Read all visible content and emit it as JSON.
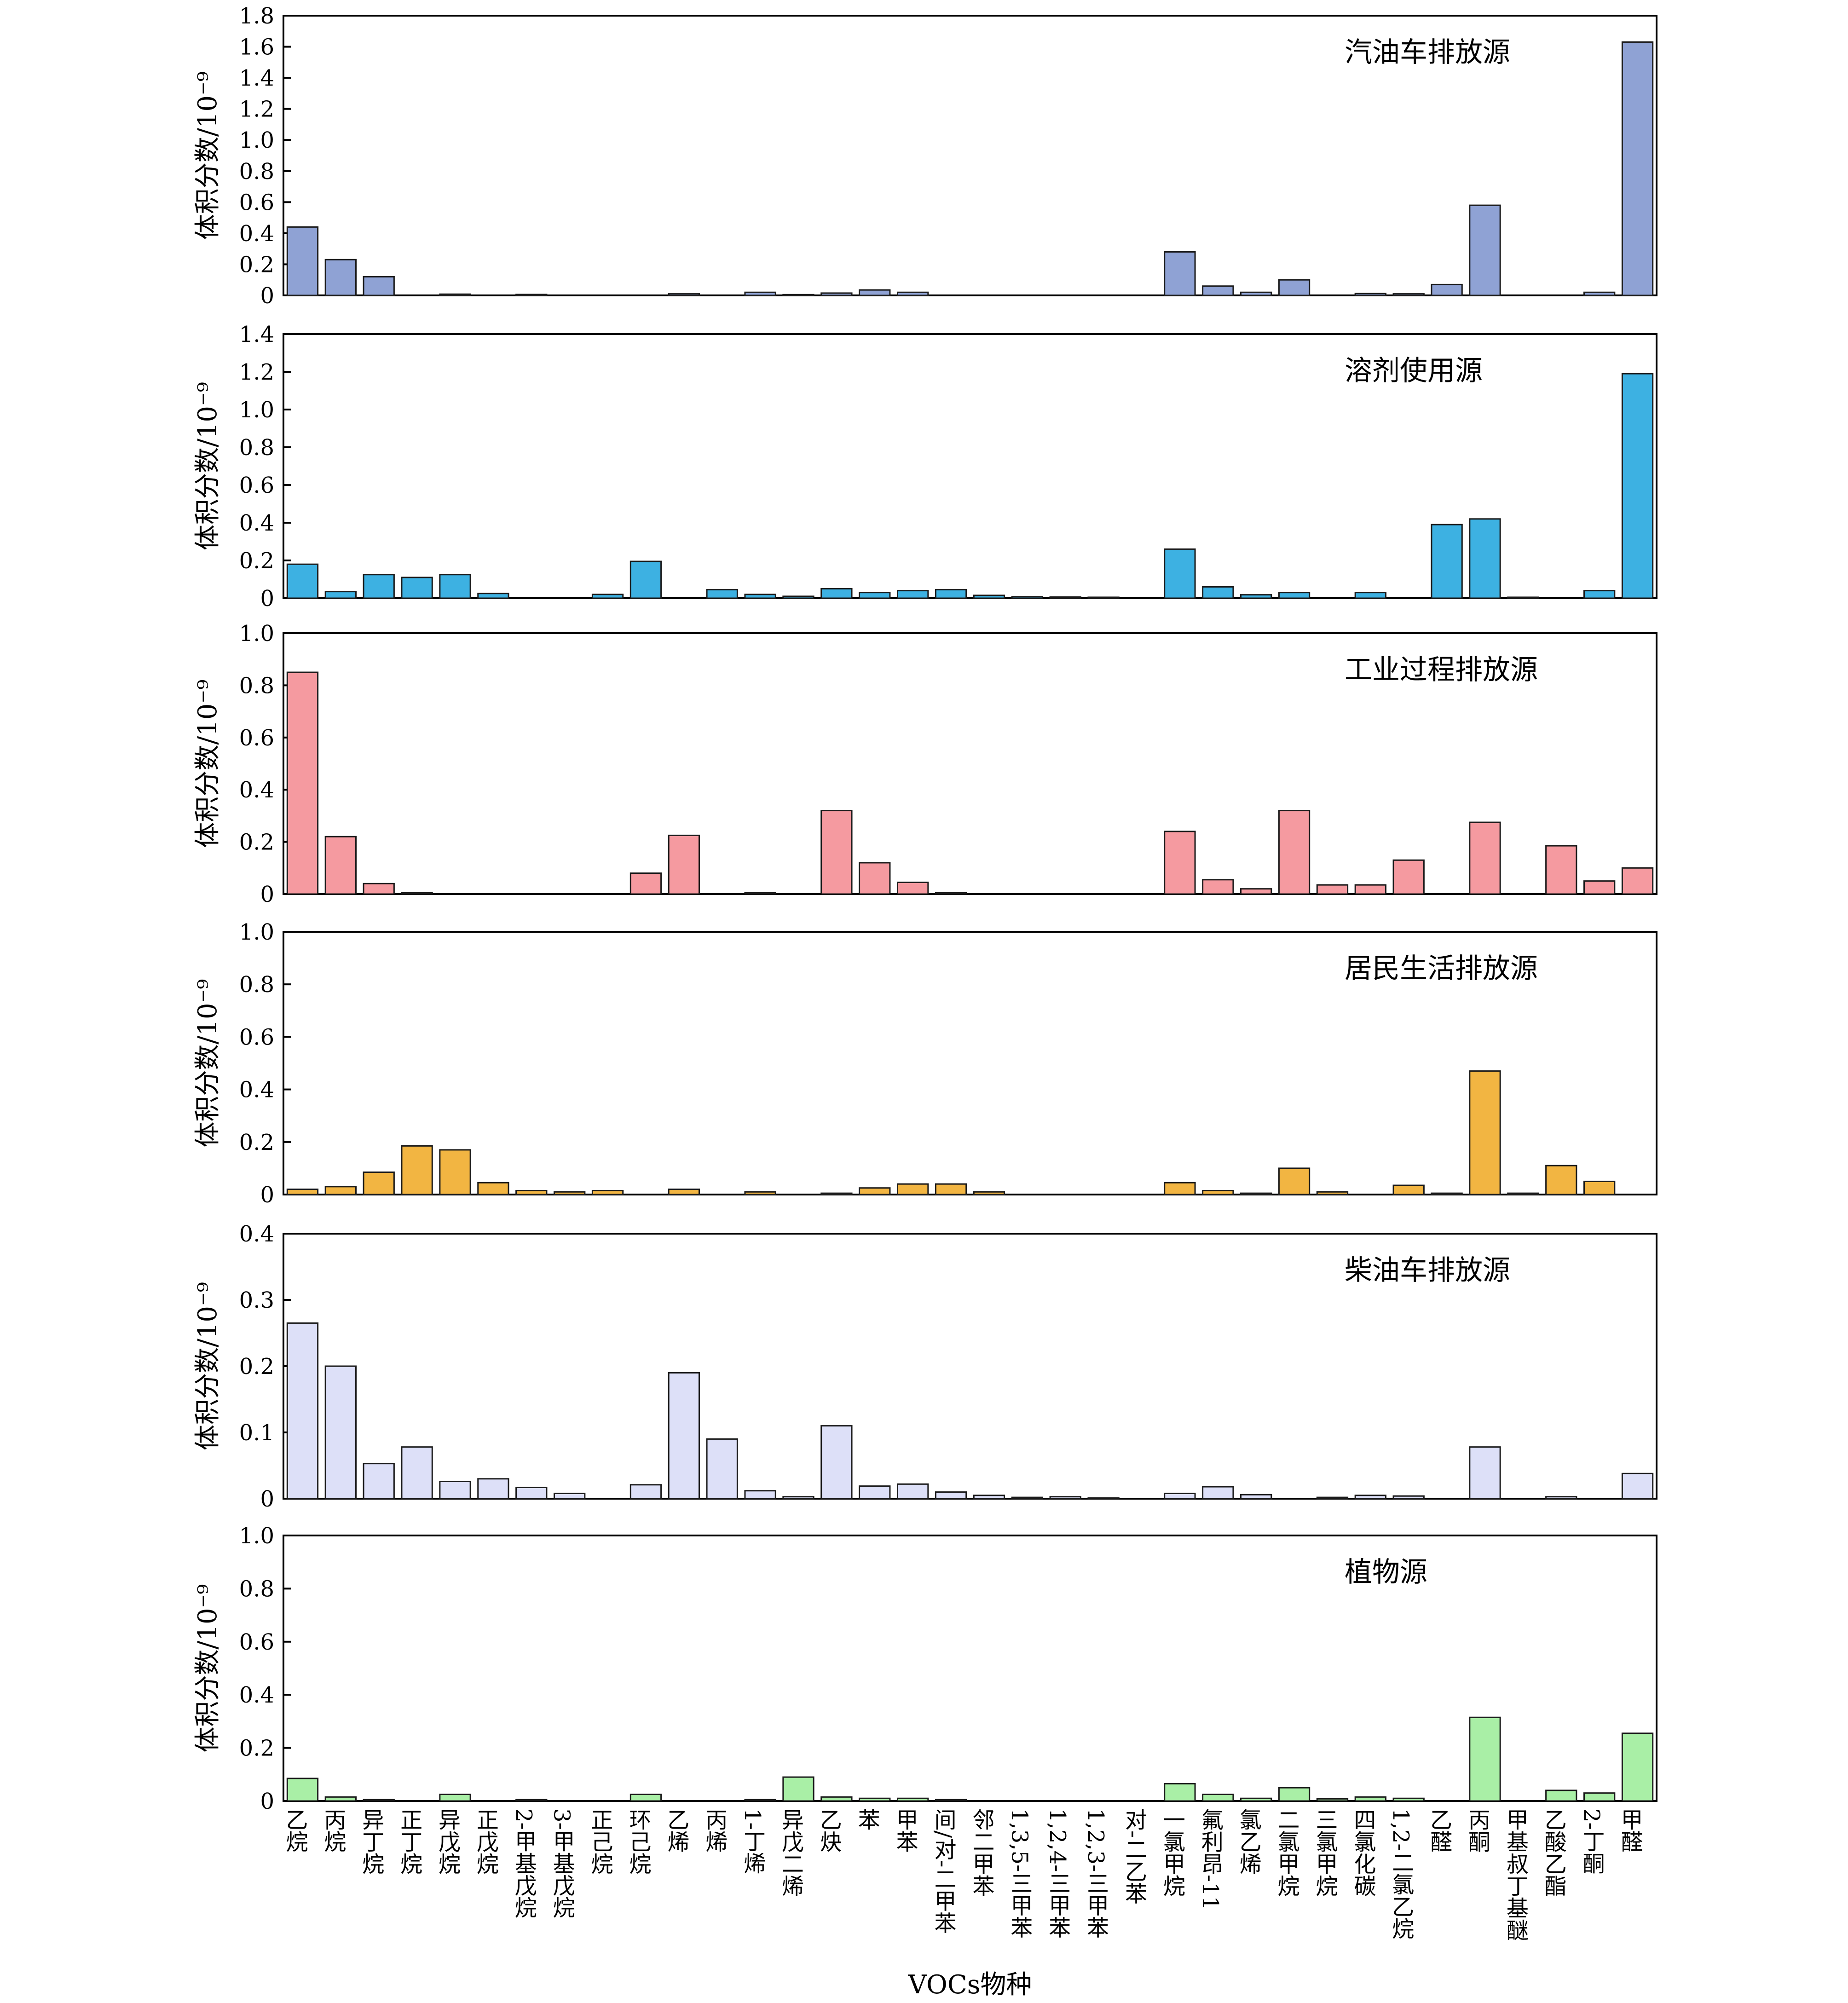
{
  "chart_data": {
    "type": "bar",
    "xlabel": "VOCs物种",
    "ylabel": "体积分数/10⁻⁹",
    "categories": [
      "乙烷",
      "丙烷",
      "异丁烷",
      "正丁烷",
      "异戊烷",
      "正戊烷",
      "2-甲基戊烷",
      "3-甲基戊烷",
      "正己烷",
      "环己烷",
      "乙烯",
      "丙烯",
      "1-丁烯",
      "异戊二烯",
      "乙炔",
      "苯",
      "甲苯",
      "间/对-二甲苯",
      "邻二甲苯",
      "1,3,5-三甲苯",
      "1,2,4-三甲苯",
      "1,2,3-三甲苯",
      "对-二乙苯",
      "一氯甲烷",
      "氟利昂-11",
      "氯乙烯",
      "二氯甲烷",
      "三氯甲烷",
      "四氯化碳",
      "1,2-二氯乙烷",
      "乙醛",
      "丙酮",
      "甲基叔丁基醚",
      "乙酸乙酯",
      "2-丁酮",
      "甲醛"
    ],
    "panels": [
      {
        "title": "汽油车排放源",
        "color": "#8fa2d4",
        "ylim": [
          0,
          1.8
        ],
        "yticks": [
          "0",
          "0.2",
          "0.4",
          "0.6",
          "0.8",
          "1.0",
          "1.2",
          "1.4",
          "1.6",
          "1.8"
        ],
        "values": [
          0.44,
          0.23,
          0.12,
          0,
          0.008,
          0,
          0.006,
          0,
          0,
          0,
          0.01,
          0,
          0.02,
          0.005,
          0.015,
          0.035,
          0.02,
          0,
          0,
          0,
          0,
          0,
          0,
          0.28,
          0.06,
          0.02,
          0.1,
          0,
          0.012,
          0.01,
          0.07,
          0.58,
          0,
          0,
          0.02,
          1.63
        ]
      },
      {
        "title": "溶剂使用源",
        "color": "#3db1e2",
        "ylim": [
          0,
          1.4
        ],
        "yticks": [
          "0",
          "0.2",
          "0.4",
          "0.6",
          "0.8",
          "1.0",
          "1.2",
          "1.4"
        ],
        "values": [
          0.18,
          0.035,
          0.125,
          0.11,
          0.125,
          0.025,
          0,
          0,
          0.02,
          0.195,
          0,
          0.045,
          0.02,
          0.01,
          0.05,
          0.03,
          0.04,
          0.045,
          0.015,
          0.008,
          0.006,
          0.005,
          0,
          0.26,
          0.06,
          0.018,
          0.03,
          0,
          0.03,
          0,
          0.39,
          0.42,
          0.005,
          0,
          0.04,
          1.19
        ]
      },
      {
        "title": "工业过程排放源",
        "color": "#f59aa0",
        "ylim": [
          0,
          1.0
        ],
        "yticks": [
          "0",
          "0.2",
          "0.4",
          "0.6",
          "0.8",
          "1.0"
        ],
        "values": [
          0.85,
          0.22,
          0.04,
          0.005,
          0,
          0,
          0,
          0,
          0,
          0.08,
          0.225,
          0,
          0.005,
          0,
          0.32,
          0.12,
          0.045,
          0.005,
          0,
          0,
          0,
          0,
          0,
          0.24,
          0.055,
          0.02,
          0.32,
          0.035,
          0.035,
          0.13,
          0,
          0.275,
          0,
          0.185,
          0.05,
          0.1
        ]
      },
      {
        "title": "居民生活排放源",
        "color": "#f2b542",
        "ylim": [
          0,
          1.0
        ],
        "yticks": [
          "0",
          "0.2",
          "0.4",
          "0.6",
          "0.8",
          "1.0"
        ],
        "values": [
          0.02,
          0.03,
          0.085,
          0.185,
          0.17,
          0.045,
          0.015,
          0.01,
          0.015,
          0,
          0.02,
          0,
          0.01,
          0,
          0.005,
          0.025,
          0.04,
          0.04,
          0.01,
          0,
          0,
          0,
          0,
          0.045,
          0.015,
          0.005,
          0.1,
          0.01,
          0,
          0.035,
          0.005,
          0.47,
          0.005,
          0.11,
          0.05,
          0
        ]
      },
      {
        "title": "柴油车排放源",
        "color": "#dde0f8",
        "ylim": [
          0,
          0.4
        ],
        "yticks": [
          "0",
          "0.1",
          "0.2",
          "0.3",
          "0.4"
        ],
        "values": [
          0.265,
          0.2,
          0.053,
          0.078,
          0.026,
          0.03,
          0.017,
          0.008,
          0,
          0.021,
          0.19,
          0.09,
          0.012,
          0.003,
          0.11,
          0.019,
          0.022,
          0.01,
          0.005,
          0.002,
          0.003,
          0.001,
          0,
          0.008,
          0.018,
          0.006,
          0,
          0.002,
          0.005,
          0.004,
          0,
          0.078,
          0,
          0.003,
          0,
          0.038
        ]
      },
      {
        "title": "植物源",
        "color": "#a9efa6",
        "ylim": [
          0,
          1.0
        ],
        "yticks": [
          "0",
          "0.2",
          "0.4",
          "0.6",
          "0.8",
          "1.0"
        ],
        "values": [
          0.085,
          0.015,
          0.005,
          0,
          0.025,
          0,
          0.005,
          0,
          0,
          0.025,
          0,
          0,
          0.005,
          0.09,
          0.015,
          0.01,
          0.01,
          0.005,
          0,
          0,
          0,
          0,
          0,
          0.065,
          0.025,
          0.01,
          0.05,
          0.008,
          0.015,
          0.01,
          0,
          0.315,
          0,
          0.04,
          0.03,
          0.255
        ]
      }
    ]
  }
}
